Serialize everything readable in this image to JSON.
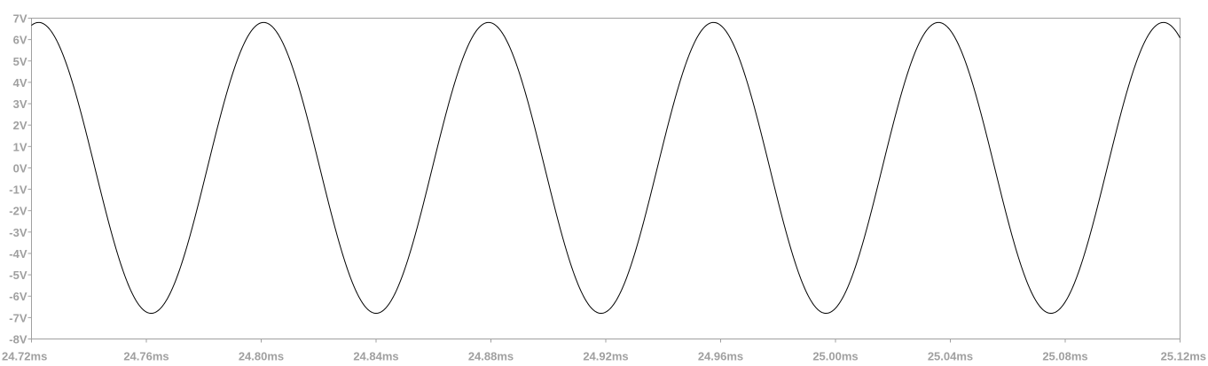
{
  "chart_data": {
    "type": "line",
    "title": "",
    "xlabel": "",
    "ylabel": "",
    "x_unit": "ms",
    "y_unit": "V",
    "xlim": [
      24.72,
      25.12
    ],
    "ylim": [
      -8,
      7
    ],
    "x_ticks": [
      "24.72ms",
      "24.76ms",
      "24.80ms",
      "24.84ms",
      "24.88ms",
      "24.92ms",
      "24.96ms",
      "25.00ms",
      "25.04ms",
      "25.08ms",
      "25.12ms"
    ],
    "y_ticks": [
      "7V",
      "6V",
      "5V",
      "4V",
      "3V",
      "2V",
      "1V",
      "0V",
      "-1V",
      "-2V",
      "-3V",
      "-4V",
      "-5V",
      "-6V",
      "-7V",
      "-8V"
    ],
    "grid": false,
    "legend": "none",
    "series": [
      {
        "waveform": "sine",
        "amplitude": 6.8,
        "offset": 0,
        "peak_times": [
          24.7225,
          24.8008,
          24.8792,
          24.9575,
          25.0358,
          25.1142
        ],
        "trough_times": [
          24.7617,
          24.84,
          24.9183,
          24.9967,
          25.075
        ],
        "color": "#000000"
      }
    ],
    "colors": {
      "axis": "#a0a0a0",
      "trace": "#000000",
      "background": "#ffffff"
    }
  }
}
